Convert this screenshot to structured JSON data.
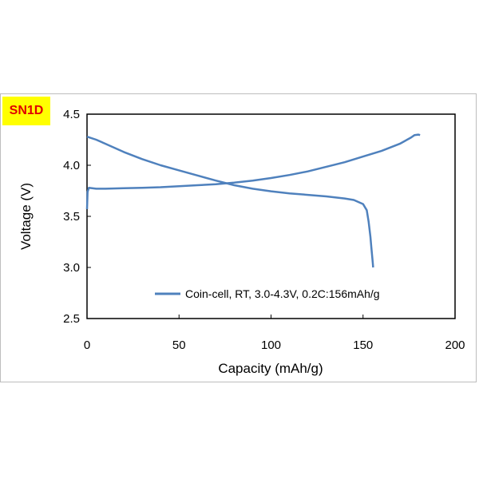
{
  "badge": {
    "label": "SN1D",
    "background": "#ffff00",
    "color": "#e00000"
  },
  "chart_data": {
    "type": "line",
    "xlabel": "Capacity (mAh/g)",
    "ylabel": "Voltage (V)",
    "xlim": [
      0,
      200
    ],
    "ylim": [
      2.5,
      4.5
    ],
    "x_ticks": [
      0,
      50,
      100,
      150,
      200
    ],
    "y_ticks": [
      2.5,
      3.0,
      3.5,
      4.0,
      4.5
    ],
    "y_tick_labels": [
      "2.5",
      "3.0",
      "3.5",
      "4.0",
      "4.5"
    ],
    "grid": false,
    "legend_position": "bottom-right",
    "line_color": "#4f81bd",
    "series": [
      {
        "name": "Coin-cell, RT, 3.0-4.3V, 0.2C:156mAh/g",
        "segments": [
          {
            "x": [
              0,
              0.3,
              1,
              5,
              10,
              20,
              30,
              40,
              50,
              60,
              70,
              80,
              90,
              100,
              110,
              120,
              130,
              140,
              150,
              160,
              170,
              176,
              178,
              180,
              181
            ],
            "y": [
              3.57,
              3.74,
              3.78,
              3.77,
              3.77,
              3.775,
              3.78,
              3.785,
              3.795,
              3.805,
              3.815,
              3.83,
              3.85,
              3.875,
              3.905,
              3.94,
              3.985,
              4.03,
              4.085,
              4.14,
              4.21,
              4.27,
              4.295,
              4.3,
              4.295
            ]
          },
          {
            "x": [
              0,
              5,
              10,
              20,
              30,
              40,
              50,
              60,
              70,
              80,
              90,
              100,
              110,
              120,
              130,
              140,
              145,
              150,
              152,
              153,
              154,
              154.5,
              155,
              155.3,
              155.5
            ],
            "y": [
              4.28,
              4.25,
              4.21,
              4.13,
              4.06,
              4.0,
              3.95,
              3.9,
              3.85,
              3.805,
              3.77,
              3.745,
              3.725,
              3.71,
              3.695,
              3.675,
              3.66,
              3.62,
              3.56,
              3.45,
              3.3,
              3.2,
              3.1,
              3.04,
              3.0
            ]
          }
        ]
      }
    ]
  }
}
